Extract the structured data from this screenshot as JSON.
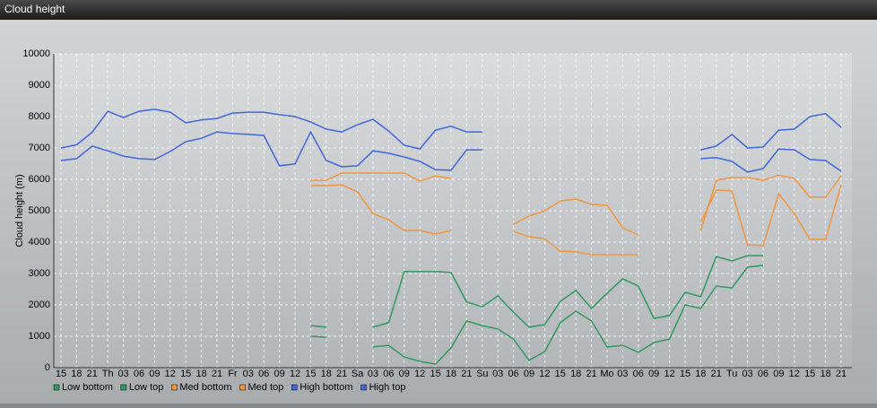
{
  "chart_data": {
    "type": "line",
    "title": "Cloud height",
    "y_label": "Cloud height (m)",
    "categories": [
      "15",
      "18",
      "21",
      "Th",
      "03",
      "06",
      "09",
      "12",
      "15",
      "18",
      "21",
      "Fr",
      "03",
      "06",
      "09",
      "12",
      "15",
      "18",
      "21",
      "Sa",
      "03",
      "06",
      "09",
      "12",
      "15",
      "18",
      "21",
      "Su",
      "03",
      "06",
      "09",
      "12",
      "15",
      "18",
      "21",
      "Mo",
      "03",
      "06",
      "09",
      "12",
      "15",
      "18",
      "21",
      "Tu",
      "03",
      "06",
      "09",
      "12",
      "15",
      "18",
      "21"
    ],
    "ylim": [
      0,
      10000
    ],
    "yticks": [
      0,
      1000,
      2000,
      3000,
      4000,
      5000,
      6000,
      7000,
      8000,
      9000,
      10000
    ],
    "grid": true,
    "legend": "bottom",
    "series": [
      {
        "name": "Low bottom",
        "color": "#2f9a5e",
        "values": [
          null,
          null,
          null,
          null,
          null,
          null,
          null,
          null,
          null,
          null,
          null,
          null,
          null,
          null,
          null,
          null,
          1000,
          970,
          null,
          null,
          660,
          710,
          340,
          200,
          110,
          630,
          1490,
          1340,
          1230,
          910,
          230,
          510,
          1430,
          1800,
          1490,
          660,
          710,
          490,
          800,
          910,
          2000,
          1890,
          2600,
          2540,
          3200,
          3260,
          null,
          null,
          null,
          null,
          null
        ]
      },
      {
        "name": "Low top",
        "color": "#2f9a5e",
        "values": [
          null,
          null,
          null,
          null,
          null,
          null,
          null,
          null,
          null,
          null,
          null,
          null,
          null,
          null,
          null,
          null,
          1340,
          1290,
          null,
          null,
          1290,
          1430,
          3060,
          3060,
          3060,
          3030,
          2090,
          1940,
          2290,
          1770,
          1290,
          1370,
          2110,
          2460,
          1890,
          2370,
          2830,
          2600,
          1570,
          1660,
          2400,
          2260,
          3540,
          3400,
          3570,
          3570,
          null,
          null,
          null,
          null,
          null
        ]
      },
      {
        "name": "Med bottom",
        "color": "#f0973f",
        "values": [
          null,
          null,
          null,
          null,
          null,
          null,
          null,
          null,
          null,
          null,
          null,
          null,
          null,
          null,
          null,
          null,
          5800,
          5800,
          5830,
          5600,
          4910,
          4710,
          4370,
          4370,
          4260,
          4370,
          null,
          null,
          null,
          4340,
          4170,
          4110,
          3710,
          3690,
          3600,
          3600,
          3600,
          3600,
          null,
          null,
          null,
          4630,
          5660,
          5630,
          3910,
          3890,
          5540,
          4910,
          4090,
          4090,
          5830
        ]
      },
      {
        "name": "Med top",
        "color": "#f0973f",
        "values": [
          null,
          null,
          null,
          null,
          null,
          null,
          null,
          null,
          null,
          null,
          null,
          null,
          null,
          null,
          null,
          null,
          5970,
          5970,
          6200,
          6200,
          6200,
          6200,
          6200,
          5940,
          6110,
          6030,
          null,
          null,
          null,
          4570,
          4830,
          5000,
          5310,
          5370,
          5200,
          5170,
          4460,
          4230,
          null,
          null,
          null,
          4370,
          5970,
          6060,
          6060,
          5970,
          6140,
          6030,
          5430,
          5430,
          6110
        ]
      },
      {
        "name": "High bottom",
        "color": "#3f68db",
        "values": [
          6600,
          6660,
          7060,
          6910,
          6740,
          6660,
          6630,
          6890,
          7200,
          7310,
          7510,
          7460,
          7430,
          7400,
          6430,
          6490,
          7510,
          6600,
          6400,
          6430,
          6910,
          6830,
          6710,
          6570,
          6310,
          6290,
          6940,
          6940,
          null,
          null,
          null,
          null,
          null,
          null,
          null,
          null,
          null,
          null,
          null,
          null,
          null,
          6660,
          6690,
          6570,
          6230,
          6340,
          6970,
          6940,
          6630,
          6600,
          6260
        ]
      },
      {
        "name": "High top",
        "color": "#3f68db",
        "values": [
          7000,
          7100,
          7500,
          8170,
          7970,
          8170,
          8230,
          8140,
          7800,
          7890,
          7940,
          8110,
          8140,
          8140,
          8060,
          8000,
          7830,
          7600,
          7510,
          7740,
          7910,
          7540,
          7090,
          6970,
          7570,
          7690,
          7510,
          7510,
          null,
          null,
          null,
          null,
          null,
          null,
          null,
          null,
          null,
          null,
          null,
          null,
          null,
          6940,
          7060,
          7430,
          7000,
          7030,
          7570,
          7600,
          8000,
          8090,
          7660
        ]
      }
    ]
  }
}
